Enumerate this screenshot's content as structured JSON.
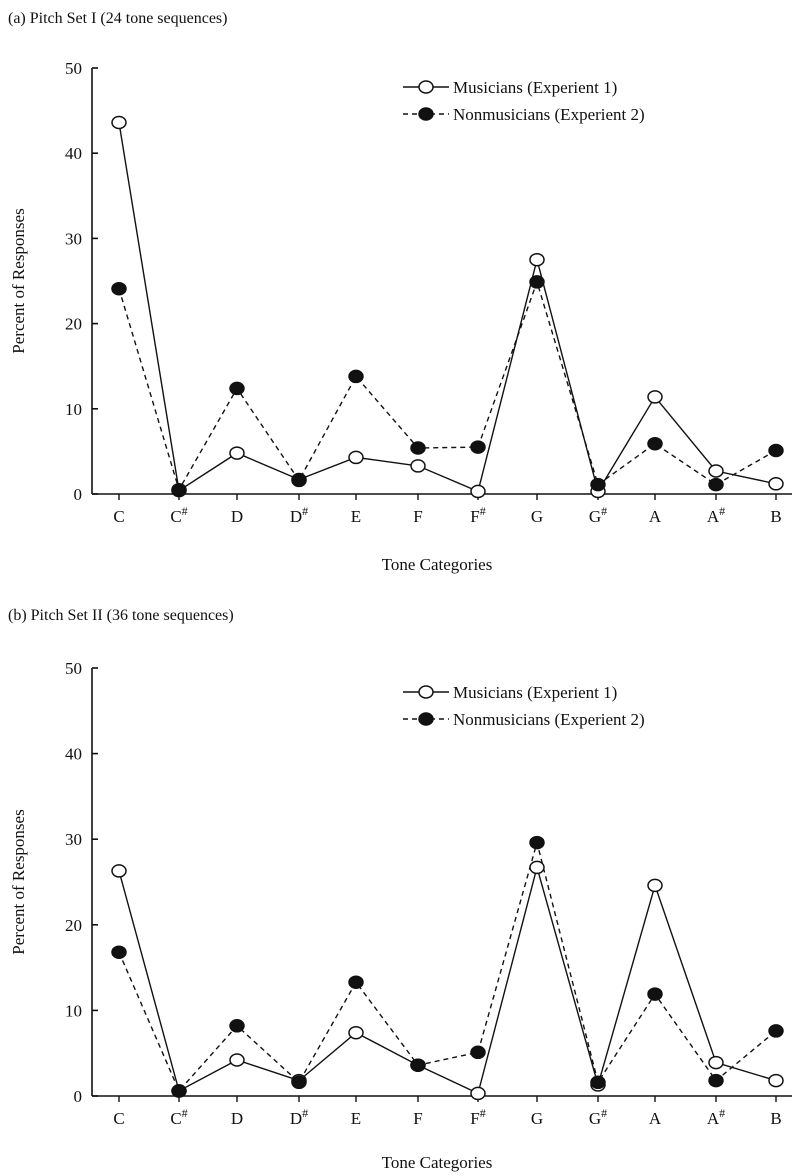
{
  "chart_data": [
    {
      "type": "line",
      "panel_title": "(a) Pitch Set I (24 tone sequences)",
      "xlabel": "Tone Categories",
      "ylabel": "Percent of Responses",
      "ylim": [
        0,
        50
      ],
      "yticks": [
        0,
        10,
        20,
        30,
        40,
        50
      ],
      "categories": [
        "C",
        "C#",
        "D",
        "D#",
        "E",
        "F",
        "F#",
        "G",
        "G#",
        "A",
        "A#",
        "B"
      ],
      "legend_position": "top-right",
      "grid": false,
      "series": [
        {
          "name": "Musicians (Experient 1)",
          "style": "solid",
          "marker": "open-circle",
          "values": [
            43.6,
            0.4,
            4.8,
            1.7,
            4.3,
            3.3,
            0.3,
            27.5,
            0.3,
            11.4,
            2.7,
            1.2
          ]
        },
        {
          "name": "Nonmusicians (Experient 2)",
          "style": "dashed",
          "marker": "filled-circle",
          "values": [
            24.1,
            0.5,
            12.4,
            1.6,
            13.8,
            5.4,
            5.5,
            24.9,
            1.1,
            5.9,
            1.1,
            5.1
          ]
        }
      ]
    },
    {
      "type": "line",
      "panel_title": "(b) Pitch Set II (36 tone sequences)",
      "xlabel": "Tone Categories",
      "ylabel": "Percent of Responses",
      "ylim": [
        0,
        50
      ],
      "yticks": [
        0,
        10,
        20,
        30,
        40,
        50
      ],
      "categories": [
        "C",
        "C#",
        "D",
        "D#",
        "E",
        "F",
        "F#",
        "G",
        "G#",
        "A",
        "A#",
        "B"
      ],
      "legend_position": "top-right",
      "grid": false,
      "series": [
        {
          "name": "Musicians (Experient 1)",
          "style": "solid",
          "marker": "open-circle",
          "values": [
            26.3,
            0.6,
            4.2,
            1.8,
            7.4,
            3.6,
            0.3,
            26.7,
            1.3,
            24.6,
            3.9,
            1.8
          ]
        },
        {
          "name": "Nonmusicians (Experient 2)",
          "style": "dashed",
          "marker": "filled-circle",
          "values": [
            16.8,
            0.6,
            8.2,
            1.6,
            13.3,
            3.6,
            5.1,
            29.6,
            1.6,
            11.9,
            1.8,
            7.6
          ]
        }
      ]
    }
  ]
}
